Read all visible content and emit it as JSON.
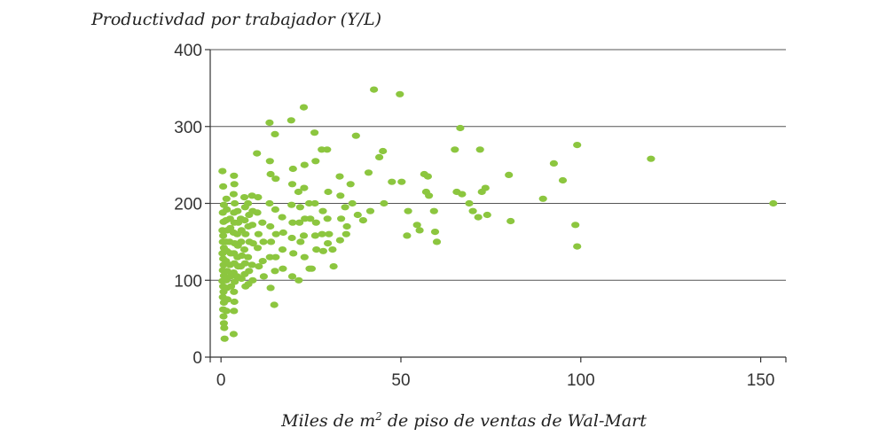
{
  "chart_data": {
    "type": "scatter",
    "ylabel": "Productivdad por trabajador (Y/L)",
    "xlabel_main": "Miles de m",
    "xlabel_sup": "2",
    "xlabel_rest": " de piso de ventas de Wal-Mart",
    "xlim": [
      -3,
      157
    ],
    "ylim": [
      0,
      400
    ],
    "xticks": [
      0,
      50,
      100,
      150
    ],
    "yticks": [
      0,
      100,
      200,
      300,
      400
    ],
    "grid": "horizontal",
    "point_color": "#8cc63f",
    "series": [
      {
        "points": [
          [
            0.4,
            242
          ],
          [
            0.6,
            222
          ],
          [
            0.8,
            198
          ],
          [
            0.5,
            188
          ],
          [
            0.7,
            176
          ],
          [
            0.4,
            165
          ],
          [
            0.6,
            158
          ],
          [
            0.5,
            150
          ],
          [
            0.8,
            142
          ],
          [
            0.4,
            135
          ],
          [
            0.6,
            128
          ],
          [
            0.7,
            120
          ],
          [
            0.5,
            113
          ],
          [
            0.8,
            106
          ],
          [
            0.4,
            99
          ],
          [
            0.6,
            92
          ],
          [
            0.7,
            85
          ],
          [
            0.5,
            78
          ],
          [
            0.8,
            71
          ],
          [
            0.6,
            62
          ],
          [
            0.7,
            53
          ],
          [
            0.8,
            44
          ],
          [
            0.9,
            38
          ],
          [
            1.0,
            24
          ],
          [
            1.5,
            206
          ],
          [
            1.6,
            192
          ],
          [
            1.4,
            178
          ],
          [
            1.7,
            165
          ],
          [
            1.5,
            150
          ],
          [
            1.6,
            138
          ],
          [
            1.4,
            125
          ],
          [
            1.7,
            112
          ],
          [
            1.5,
            100
          ],
          [
            1.6,
            90
          ],
          [
            1.8,
            75
          ],
          [
            1.5,
            60
          ],
          [
            2.5,
            180
          ],
          [
            2.6,
            168
          ],
          [
            2.4,
            150
          ],
          [
            2.7,
            135
          ],
          [
            2.5,
            120
          ],
          [
            2.6,
            105
          ],
          [
            2.8,
            92
          ],
          [
            3.6,
            236
          ],
          [
            3.7,
            225
          ],
          [
            3.5,
            212
          ],
          [
            3.8,
            200
          ],
          [
            3.6,
            188
          ],
          [
            3.7,
            175
          ],
          [
            3.5,
            162
          ],
          [
            3.8,
            148
          ],
          [
            3.6,
            135
          ],
          [
            3.7,
            122
          ],
          [
            3.5,
            110
          ],
          [
            3.8,
            98
          ],
          [
            3.6,
            85
          ],
          [
            3.7,
            72
          ],
          [
            3.6,
            60
          ],
          [
            3.5,
            30
          ],
          [
            4.6,
            190
          ],
          [
            4.8,
            175
          ],
          [
            4.5,
            160
          ],
          [
            4.7,
            145
          ],
          [
            4.6,
            130
          ],
          [
            4.8,
            118
          ],
          [
            4.5,
            105
          ],
          [
            5.5,
            180
          ],
          [
            5.7,
            165
          ],
          [
            5.6,
            150
          ],
          [
            5.8,
            132
          ],
          [
            5.5,
            118
          ],
          [
            5.7,
            102
          ],
          [
            6.5,
            208
          ],
          [
            6.7,
            195
          ],
          [
            6.6,
            178
          ],
          [
            6.8,
            160
          ],
          [
            6.5,
            140
          ],
          [
            6.7,
            122
          ],
          [
            6.6,
            108
          ],
          [
            6.8,
            92
          ],
          [
            7.5,
            200
          ],
          [
            7.8,
            185
          ],
          [
            7.6,
            170
          ],
          [
            7.9,
            150
          ],
          [
            7.5,
            130
          ],
          [
            7.8,
            112
          ],
          [
            7.6,
            95
          ],
          [
            8.6,
            210
          ],
          [
            8.8,
            190
          ],
          [
            8.7,
            172
          ],
          [
            8.9,
            148
          ],
          [
            8.6,
            120
          ],
          [
            8.8,
            100
          ],
          [
            10,
            265
          ],
          [
            10.3,
            208
          ],
          [
            10.1,
            188
          ],
          [
            10.4,
            160
          ],
          [
            10.2,
            142
          ],
          [
            10.5,
            118
          ],
          [
            11.5,
            175
          ],
          [
            11.8,
            150
          ],
          [
            11.6,
            125
          ],
          [
            11.9,
            105
          ],
          [
            13.5,
            305
          ],
          [
            13.6,
            255
          ],
          [
            13.8,
            238
          ],
          [
            13.5,
            200
          ],
          [
            13.7,
            170
          ],
          [
            13.9,
            150
          ],
          [
            13.6,
            130
          ],
          [
            13.8,
            90
          ],
          [
            15,
            290
          ],
          [
            15.2,
            232
          ],
          [
            15.1,
            192
          ],
          [
            15.3,
            160
          ],
          [
            15.2,
            130
          ],
          [
            15.0,
            112
          ],
          [
            14.8,
            68
          ],
          [
            17,
            182
          ],
          [
            17.3,
            162
          ],
          [
            17.1,
            140
          ],
          [
            17.2,
            115
          ],
          [
            19.5,
            308
          ],
          [
            20,
            245
          ],
          [
            19.8,
            225
          ],
          [
            19.6,
            198
          ],
          [
            19.9,
            175
          ],
          [
            19.7,
            155
          ],
          [
            20.1,
            135
          ],
          [
            19.8,
            105
          ],
          [
            21.5,
            215
          ],
          [
            22,
            195
          ],
          [
            21.8,
            175
          ],
          [
            22.1,
            150
          ],
          [
            21.6,
            100
          ],
          [
            23,
            325
          ],
          [
            23.2,
            250
          ],
          [
            23.1,
            220
          ],
          [
            23.3,
            180
          ],
          [
            23,
            158
          ],
          [
            23.2,
            130
          ],
          [
            24.5,
            200
          ],
          [
            24.8,
            180
          ],
          [
            24.6,
            115
          ],
          [
            25.2,
            115
          ],
          [
            26,
            292
          ],
          [
            26.3,
            255
          ],
          [
            26.1,
            200
          ],
          [
            26.4,
            175
          ],
          [
            26.2,
            158
          ],
          [
            26.5,
            140
          ],
          [
            28,
            270
          ],
          [
            28.3,
            190
          ],
          [
            28.1,
            160
          ],
          [
            28.4,
            138
          ],
          [
            29.5,
            270
          ],
          [
            29.8,
            215
          ],
          [
            29.6,
            180
          ],
          [
            30,
            160
          ],
          [
            29.7,
            148
          ],
          [
            31,
            140
          ],
          [
            31.3,
            118
          ],
          [
            33,
            235
          ],
          [
            33.2,
            210
          ],
          [
            33.4,
            180
          ],
          [
            33.1,
            152
          ],
          [
            34.5,
            195
          ],
          [
            35,
            170
          ],
          [
            34.8,
            160
          ],
          [
            36,
            225
          ],
          [
            36.5,
            200
          ],
          [
            37.5,
            288
          ],
          [
            38,
            185
          ],
          [
            39.5,
            178
          ],
          [
            41,
            240
          ],
          [
            41.5,
            190
          ],
          [
            42.5,
            348
          ],
          [
            44,
            260
          ],
          [
            45,
            268
          ],
          [
            45.3,
            200
          ],
          [
            47.5,
            228
          ],
          [
            49.7,
            342
          ],
          [
            50.2,
            228
          ],
          [
            52,
            190
          ],
          [
            51.7,
            158
          ],
          [
            54.5,
            172
          ],
          [
            55.2,
            165
          ],
          [
            56.5,
            238
          ],
          [
            57.5,
            235
          ],
          [
            57,
            215
          ],
          [
            57.8,
            210
          ],
          [
            59.2,
            190
          ],
          [
            59.5,
            163
          ],
          [
            60,
            150
          ],
          [
            65,
            270
          ],
          [
            65.5,
            215
          ],
          [
            66.5,
            298
          ],
          [
            67,
            212
          ],
          [
            69,
            200
          ],
          [
            70,
            190
          ],
          [
            71.5,
            182
          ],
          [
            72,
            270
          ],
          [
            72.5,
            215
          ],
          [
            73.5,
            220
          ],
          [
            74,
            185
          ],
          [
            80,
            237
          ],
          [
            80.5,
            177
          ],
          [
            89.5,
            206
          ],
          [
            92.5,
            252
          ],
          [
            95,
            230
          ],
          [
            99,
            276
          ],
          [
            98.5,
            172
          ],
          [
            99,
            144
          ],
          [
            119.5,
            258
          ],
          [
            153.5,
            200
          ]
        ]
      }
    ]
  }
}
